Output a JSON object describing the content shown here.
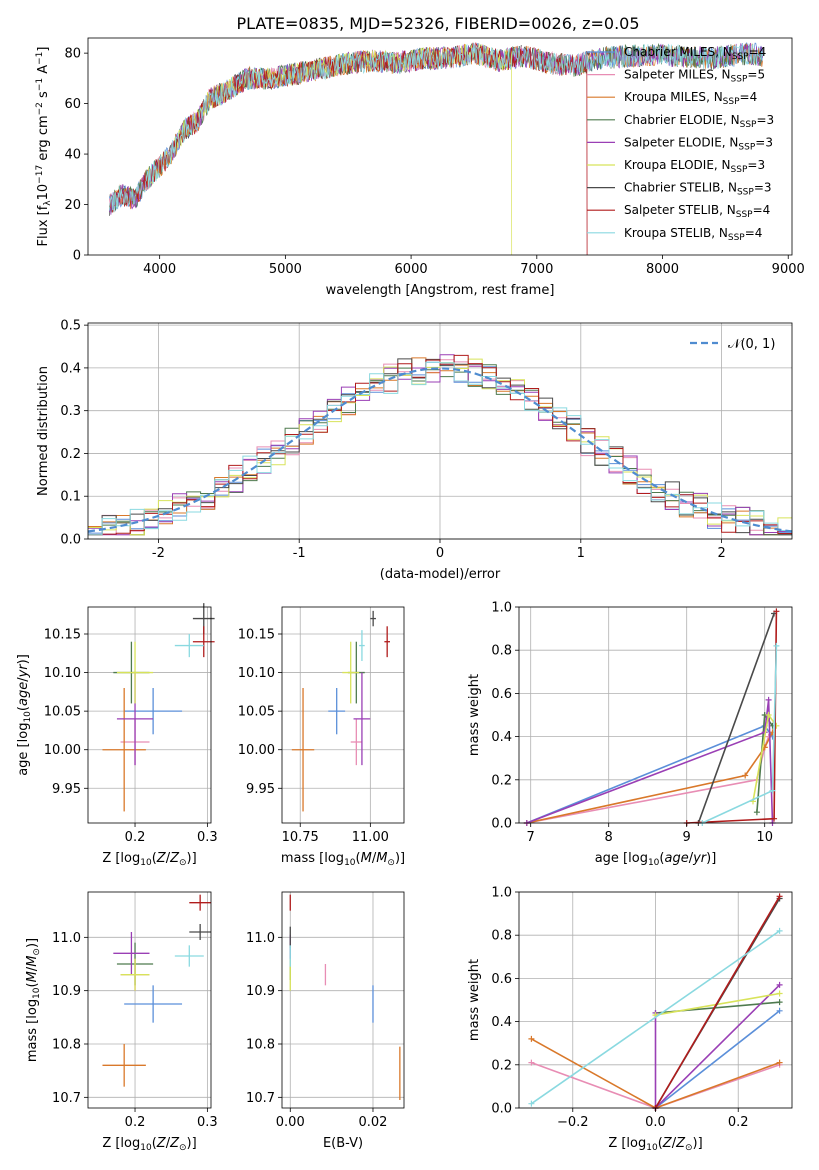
{
  "title": "PLATE=0835, MJD=52326, FIBERID=0026, z=0.05",
  "colors": [
    "#5b8fd9",
    "#e88db4",
    "#d9782a",
    "#4e7a4e",
    "#9a3fb5",
    "#d8e35a",
    "#4a4a4a",
    "#b01c1c",
    "#8ad9e0"
  ],
  "legend_entries": [
    {
      "name": "Chabrier MILES",
      "n": "4"
    },
    {
      "name": "Salpeter MILES",
      "n": "5"
    },
    {
      "name": "Kroupa MILES",
      "n": "4"
    },
    {
      "name": "Chabrier ELODIE",
      "n": "3"
    },
    {
      "name": "Salpeter ELODIE",
      "n": "3"
    },
    {
      "name": "Kroupa ELODIE",
      "n": "3"
    },
    {
      "name": "Chabrier STELIB",
      "n": "3"
    },
    {
      "name": "Salpeter STELIB",
      "n": "4"
    },
    {
      "name": "Kroupa STELIB",
      "n": "4"
    }
  ],
  "chart_data": [
    {
      "id": "spectrum",
      "type": "line",
      "title": "PLATE=0835, MJD=52326, FIBERID=0026, z=0.05",
      "xlabel": "wavelength [Angstrom, rest frame]",
      "ylabel": "Flux [f_λ 10^-17 erg cm^-2 s^-1 A^-1]",
      "xlim": [
        3430,
        9030
      ],
      "ylim": [
        0,
        86
      ],
      "xticks": [
        4000,
        5000,
        6000,
        7000,
        8000,
        9000
      ],
      "yticks": [
        0,
        20,
        40,
        60,
        80
      ],
      "x": [
        3600,
        3700,
        3800,
        3900,
        4000,
        4100,
        4200,
        4300,
        4400,
        4500,
        4700,
        4900,
        5100,
        5300,
        5500,
        5700,
        5900,
        6100,
        6300,
        6500,
        6700,
        6900,
        7100,
        7300,
        7500,
        7800,
        8100,
        8400,
        8700,
        8800
      ],
      "y": [
        20,
        24,
        22,
        30,
        35,
        41,
        50,
        53,
        62,
        64,
        70,
        70,
        72,
        74,
        76,
        77,
        76,
        78,
        78,
        80,
        77,
        79,
        76,
        75,
        78,
        79,
        79,
        78,
        80,
        79
      ],
      "model_spans": [
        [
          3600,
          8800
        ],
        [
          3600,
          7400
        ],
        [
          3600,
          8800
        ],
        [
          3600,
          8800
        ],
        [
          3600,
          8800
        ],
        [
          3900,
          6800
        ],
        [
          3600,
          8800
        ],
        [
          3600,
          7400
        ],
        [
          3600,
          8800
        ]
      ],
      "grid": false,
      "legend": "top-right"
    },
    {
      "id": "residuals",
      "type": "histogram",
      "xlabel": "(data-model)/error",
      "ylabel": "Normed distribution",
      "xlim": [
        -2.5,
        2.5
      ],
      "ylim": [
        0,
        0.505
      ],
      "xticks": [
        -2,
        -1,
        0,
        1,
        2
      ],
      "yticks": [
        0,
        0.1,
        0.2,
        0.3,
        0.4,
        0.5
      ],
      "bin_width": 0.1,
      "legend_label": "𝒩(0, 1)",
      "grid": true,
      "legend": "top-right"
    },
    {
      "id": "age-vs-Z",
      "type": "scatter",
      "xlabel": "Z [log10(Z/Z⊙)]",
      "ylabel": "age [log10(age/yr)]",
      "xlim": [
        0.135,
        0.305
      ],
      "ylim": [
        9.905,
        10.185
      ],
      "xticks": [
        0.2,
        0.3
      ],
      "xtick_labels": [
        "0.2",
        "0.3"
      ],
      "yticks": [
        9.95,
        10.0,
        10.05,
        10.1,
        10.15
      ],
      "points": [
        {
          "x": 0.225,
          "y": 10.05,
          "xerr": 0.04,
          "yerr": 0.03
        },
        {
          "x": 0.2,
          "y": 10.01,
          "xerr": 0.02,
          "yerr": 0.03
        },
        {
          "x": 0.185,
          "y": 10.0,
          "xerr": 0.03,
          "yerr": 0.08
        },
        {
          "x": 0.195,
          "y": 10.1,
          "xerr": 0.025,
          "yerr": 0.04
        },
        {
          "x": 0.2,
          "y": 10.04,
          "xerr": 0.025,
          "yerr": 0.06
        },
        {
          "x": 0.2,
          "y": 10.1,
          "xerr": 0.025,
          "yerr": 0.04
        },
        {
          "x": 0.295,
          "y": 10.17,
          "xerr": 0.015,
          "yerr": 0.02
        },
        {
          "x": 0.295,
          "y": 10.14,
          "xerr": 0.015,
          "yerr": 0.02
        },
        {
          "x": 0.275,
          "y": 10.135,
          "xerr": 0.02,
          "yerr": 0.015
        }
      ]
    },
    {
      "id": "age-vs-mass",
      "type": "scatter",
      "xlabel": "mass [log10(M/M⊙)]",
      "ylabel": "",
      "xlim": [
        10.685,
        11.12
      ],
      "ylim": [
        9.905,
        10.185
      ],
      "xticks": [
        10.75,
        11.0
      ],
      "xtick_labels": [
        "10.75",
        "11.00"
      ],
      "yticks": [
        9.95,
        10.0,
        10.05,
        10.1,
        10.15
      ],
      "points": [
        {
          "x": 10.88,
          "y": 10.05,
          "xerr": 0.03,
          "yerr": 0.03
        },
        {
          "x": 10.95,
          "y": 10.01,
          "xerr": 0.02,
          "yerr": 0.03
        },
        {
          "x": 10.76,
          "y": 10.0,
          "xerr": 0.04,
          "yerr": 0.08
        },
        {
          "x": 10.95,
          "y": 10.1,
          "xerr": 0.03,
          "yerr": 0.04
        },
        {
          "x": 10.97,
          "y": 10.04,
          "xerr": 0.03,
          "yerr": 0.06
        },
        {
          "x": 10.93,
          "y": 10.1,
          "xerr": 0.03,
          "yerr": 0.04
        },
        {
          "x": 11.01,
          "y": 10.17,
          "xerr": 0.01,
          "yerr": 0.01
        },
        {
          "x": 11.06,
          "y": 10.14,
          "xerr": 0.01,
          "yerr": 0.02
        },
        {
          "x": 10.97,
          "y": 10.135,
          "xerr": 0.01,
          "yerr": 0.02
        }
      ]
    },
    {
      "id": "weight-vs-age",
      "type": "line",
      "xlabel": "age [log10(age/yr)]",
      "ylabel": "mass weight",
      "xlim": [
        6.85,
        10.35
      ],
      "ylim": [
        0,
        1.0
      ],
      "xticks": [
        7,
        8,
        9,
        10
      ],
      "yticks": [
        0,
        0.2,
        0.4,
        0.6,
        0.8,
        1.0
      ],
      "grid": true,
      "series": [
        {
          "x": [
            6.95,
            10.0,
            10.1
          ],
          "y": [
            0.0,
            0.45,
            0.4
          ]
        },
        {
          "x": [
            6.95,
            9.9,
            10.0,
            10.05
          ],
          "y": [
            0.0,
            0.2,
            0.35,
            0.4
          ]
        },
        {
          "x": [
            6.95,
            9.75,
            10.0,
            10.1
          ],
          "y": [
            0.0,
            0.22,
            0.35,
            0.42
          ]
        },
        {
          "x": [
            9.9,
            10.0,
            10.1
          ],
          "y": [
            0.05,
            0.5,
            0.45
          ]
        },
        {
          "x": [
            6.95,
            10.0,
            10.05,
            10.1
          ],
          "y": [
            0.0,
            0.42,
            0.57,
            0.0
          ]
        },
        {
          "x": [
            9.85,
            10.05,
            10.15
          ],
          "y": [
            0.1,
            0.5,
            0.45
          ]
        },
        {
          "x": [
            9.15,
            10.12
          ],
          "y": [
            0.0,
            0.97
          ]
        },
        {
          "x": [
            9.0,
            10.12,
            10.15
          ],
          "y": [
            0.0,
            0.02,
            0.98
          ]
        },
        {
          "x": [
            9.2,
            10.1,
            10.15
          ],
          "y": [
            0.0,
            0.15,
            0.82
          ]
        }
      ]
    },
    {
      "id": "mass-vs-Z",
      "type": "scatter",
      "xlabel": "Z [log10(Z/Z⊙)]",
      "ylabel": "mass [log10(M/M⊙)]",
      "xlim": [
        0.135,
        0.305
      ],
      "ylim": [
        10.68,
        11.085
      ],
      "xticks": [
        0.2,
        0.3
      ],
      "xtick_labels": [
        "0.2",
        "0.3"
      ],
      "yticks": [
        10.7,
        10.8,
        10.9,
        11.0
      ],
      "points": [
        {
          "x": 0.225,
          "y": 10.875,
          "xerr": 0.04,
          "yerr": 0.035
        },
        {
          "x": 0.2,
          "y": 10.93,
          "xerr": 0.02,
          "yerr": 0.03
        },
        {
          "x": 0.185,
          "y": 10.76,
          "xerr": 0.03,
          "yerr": 0.04
        },
        {
          "x": 0.2,
          "y": 10.95,
          "xerr": 0.025,
          "yerr": 0.04
        },
        {
          "x": 0.195,
          "y": 10.97,
          "xerr": 0.025,
          "yerr": 0.04
        },
        {
          "x": 0.2,
          "y": 10.93,
          "xerr": 0.02,
          "yerr": 0.03
        },
        {
          "x": 0.29,
          "y": 11.01,
          "xerr": 0.015,
          "yerr": 0.015
        },
        {
          "x": 0.29,
          "y": 11.065,
          "xerr": 0.015,
          "yerr": 0.015
        },
        {
          "x": 0.275,
          "y": 10.965,
          "xerr": 0.02,
          "yerr": 0.02
        }
      ]
    },
    {
      "id": "mass-vs-EBV",
      "type": "scatter",
      "xlabel": "E(B-V)",
      "ylabel": "",
      "xlim": [
        -0.002,
        0.0275
      ],
      "ylim": [
        10.68,
        11.085
      ],
      "xticks": [
        0.0,
        0.02
      ],
      "xtick_labels": [
        "0.00",
        "0.02"
      ],
      "yticks": [
        10.7,
        10.8,
        10.9,
        11.0
      ],
      "points": [
        {
          "x": 0.02,
          "y": 10.875,
          "xerr": 0,
          "yerr": 0.035
        },
        {
          "x": 0.0085,
          "y": 10.93,
          "xerr": 0,
          "yerr": 0.02
        },
        {
          "x": 0.0265,
          "y": 10.745,
          "xerr": 0,
          "yerr": 0.05
        },
        {
          "x": 0.0,
          "y": 10.95,
          "xerr": 0,
          "yerr": 0.03
        },
        {
          "x": 0.0,
          "y": 10.975,
          "xerr": 0,
          "yerr": 0.03
        },
        {
          "x": 0.0,
          "y": 10.93,
          "xerr": 0,
          "yerr": 0.03
        },
        {
          "x": 0.0,
          "y": 11.0,
          "xerr": 0,
          "yerr": 0.02
        },
        {
          "x": 0.0,
          "y": 11.065,
          "xerr": 0,
          "yerr": 0.015
        },
        {
          "x": 0.0,
          "y": 10.965,
          "xerr": 0,
          "yerr": 0.02
        }
      ]
    },
    {
      "id": "weight-vs-Z",
      "type": "line",
      "xlabel": "Z [log10(Z/Z⊙)]",
      "ylabel": "mass weight",
      "xlim": [
        -0.33,
        0.33
      ],
      "ylim": [
        0,
        1.0
      ],
      "xticks": [
        -0.2,
        0.0,
        0.2
      ],
      "xtick_labels": [
        "−0.2",
        "0.0",
        "0.2"
      ],
      "yticks": [
        0,
        0.2,
        0.4,
        0.6,
        0.8,
        1.0
      ],
      "grid": true,
      "series": [
        {
          "x": [
            0.0,
            0.3
          ],
          "y": [
            0.0,
            0.45
          ]
        },
        {
          "x": [
            -0.3,
            0.0,
            0.3
          ],
          "y": [
            0.21,
            0.0,
            0.2
          ]
        },
        {
          "x": [
            -0.3,
            0.0,
            0.3
          ],
          "y": [
            0.32,
            0.0,
            0.21
          ]
        },
        {
          "x": [
            0.0,
            0.3
          ],
          "y": [
            0.44,
            0.49
          ]
        },
        {
          "x": [
            0.0,
            0.0,
            0.3
          ],
          "y": [
            0.44,
            0.0,
            0.57
          ]
        },
        {
          "x": [
            0.0,
            0.3
          ],
          "y": [
            0.43,
            0.53
          ]
        },
        {
          "x": [
            0.0,
            0.3
          ],
          "y": [
            0.0,
            0.97
          ]
        },
        {
          "x": [
            0.0,
            0.3
          ],
          "y": [
            0.0,
            0.98
          ]
        },
        {
          "x": [
            -0.3,
            0.3
          ],
          "y": [
            0.02,
            0.82
          ]
        }
      ]
    }
  ]
}
